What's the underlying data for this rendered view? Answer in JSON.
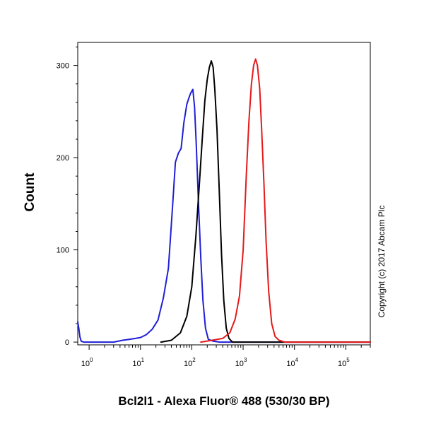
{
  "chart_data": {
    "type": "line",
    "title": "",
    "xlabel": "Bcl2l1 - Alexa Fluor® 488 (530/30 BP)",
    "ylabel": "Count",
    "x_scale": "log",
    "xlim": [
      0.6,
      300000
    ],
    "ylim": [
      -3,
      325
    ],
    "x_ticks": [
      {
        "value": 1,
        "base": "10",
        "exp": "0"
      },
      {
        "value": 10,
        "base": "10",
        "exp": "1"
      },
      {
        "value": 100,
        "base": "10",
        "exp": "2"
      },
      {
        "value": 1000,
        "base": "10",
        "exp": "3"
      },
      {
        "value": 10000,
        "base": "10",
        "exp": "4"
      },
      {
        "value": 100000,
        "base": "10",
        "exp": "5"
      }
    ],
    "y_ticks": [
      {
        "value": 0,
        "label": "0"
      },
      {
        "value": 100,
        "label": "100"
      },
      {
        "value": 200,
        "label": "200"
      },
      {
        "value": 300,
        "label": "300"
      }
    ],
    "grid": false,
    "legend": "none",
    "series": [
      {
        "color": "#1f1fd6",
        "points": [
          [
            0.6,
            22
          ],
          [
            0.63,
            15
          ],
          [
            0.66,
            6
          ],
          [
            0.7,
            1
          ],
          [
            0.78,
            0
          ],
          [
            1.5,
            0
          ],
          [
            3,
            0
          ],
          [
            4.5,
            2
          ],
          [
            6,
            3
          ],
          [
            8,
            4
          ],
          [
            10,
            5
          ],
          [
            13,
            8
          ],
          [
            17,
            14
          ],
          [
            22,
            24
          ],
          [
            28,
            48
          ],
          [
            35,
            80
          ],
          [
            42,
            145
          ],
          [
            48,
            195
          ],
          [
            55,
            205
          ],
          [
            62,
            210
          ],
          [
            70,
            238
          ],
          [
            80,
            258
          ],
          [
            88,
            265
          ],
          [
            95,
            270
          ],
          [
            105,
            274
          ],
          [
            113,
            255
          ],
          [
            122,
            215
          ],
          [
            135,
            150
          ],
          [
            150,
            90
          ],
          [
            165,
            45
          ],
          [
            185,
            15
          ],
          [
            210,
            3
          ],
          [
            260,
            1
          ],
          [
            350,
            0
          ],
          [
            300000,
            0
          ]
        ]
      },
      {
        "color": "#000000",
        "points": [
          [
            25,
            0
          ],
          [
            40,
            2
          ],
          [
            60,
            10
          ],
          [
            80,
            28
          ],
          [
            100,
            60
          ],
          [
            120,
            115
          ],
          [
            140,
            170
          ],
          [
            160,
            220
          ],
          [
            180,
            262
          ],
          [
            200,
            285
          ],
          [
            220,
            298
          ],
          [
            240,
            305
          ],
          [
            260,
            298
          ],
          [
            280,
            275
          ],
          [
            310,
            230
          ],
          [
            340,
            170
          ],
          [
            380,
            95
          ],
          [
            420,
            45
          ],
          [
            470,
            15
          ],
          [
            530,
            4
          ],
          [
            620,
            0
          ],
          [
            300000,
            0
          ]
        ]
      },
      {
        "color": "#e41a1a",
        "points": [
          [
            150,
            0
          ],
          [
            250,
            2
          ],
          [
            400,
            4
          ],
          [
            550,
            10
          ],
          [
            700,
            25
          ],
          [
            850,
            50
          ],
          [
            1000,
            100
          ],
          [
            1150,
            180
          ],
          [
            1300,
            240
          ],
          [
            1450,
            280
          ],
          [
            1600,
            300
          ],
          [
            1750,
            307
          ],
          [
            1900,
            300
          ],
          [
            2100,
            275
          ],
          [
            2300,
            230
          ],
          [
            2550,
            170
          ],
          [
            2800,
            110
          ],
          [
            3150,
            55
          ],
          [
            3600,
            20
          ],
          [
            4200,
            6
          ],
          [
            5000,
            2
          ],
          [
            6500,
            0
          ],
          [
            300000,
            0
          ]
        ]
      }
    ],
    "annotation": "Copyright (c) 2017 Abcam Plc"
  }
}
